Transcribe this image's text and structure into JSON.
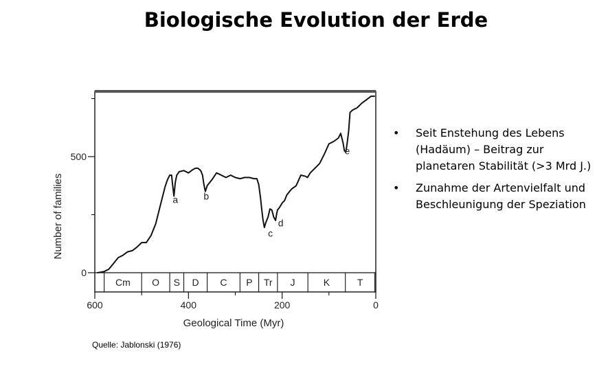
{
  "title": "Biologische Evolution der Erde",
  "bullets": [
    "Seit Enstehung des Lebens (Hadäum) – Beitrag zur planetaren Stabilität (>3 Mrd J.)",
    "Zunahme der Artenvielfalt und Beschleunigung der Speziation"
  ],
  "bullet_symbol": "•",
  "source": "Quelle: Jablonski (1976)",
  "chart_data": {
    "type": "line",
    "xlabel": "Geological Time (Myr)",
    "ylabel": "Number of families",
    "xlim": [
      600,
      0
    ],
    "ylim": [
      0,
      770
    ],
    "xticks": [
      600,
      400,
      200,
      0
    ],
    "yticks": [
      0,
      500
    ],
    "series": [
      {
        "x": [
          594,
          580,
          570,
          560,
          550,
          540,
          530,
          520,
          510,
          500,
          490,
          480,
          470,
          460,
          455,
          450,
          445,
          440,
          436,
          434,
          431,
          428,
          425,
          420,
          410,
          400,
          390,
          385,
          380,
          374,
          370,
          367,
          364,
          360,
          350,
          340,
          330,
          320,
          310,
          300,
          290,
          280,
          270,
          260,
          254,
          250,
          246,
          244,
          241,
          238,
          235,
          230,
          226,
          222,
          218,
          214,
          212,
          210,
          206,
          200,
          195,
          190,
          180,
          170,
          160,
          150,
          146,
          140,
          130,
          120,
          110,
          100,
          90,
          80,
          75,
          70,
          67,
          64,
          61,
          58,
          55,
          50,
          40,
          30,
          20,
          10,
          3
        ],
        "y": [
          0,
          5,
          15,
          40,
          65,
          75,
          90,
          95,
          110,
          130,
          130,
          160,
          210,
          290,
          330,
          370,
          400,
          420,
          420,
          380,
          330,
          390,
          420,
          435,
          440,
          430,
          445,
          450,
          450,
          440,
          420,
          380,
          350,
          375,
          400,
          430,
          420,
          410,
          420,
          410,
          405,
          410,
          410,
          405,
          405,
          380,
          320,
          280,
          230,
          195,
          215,
          240,
          275,
          270,
          240,
          225,
          250,
          270,
          280,
          300,
          310,
          335,
          360,
          375,
          420,
          415,
          410,
          430,
          450,
          470,
          510,
          555,
          565,
          580,
          600,
          560,
          525,
          520,
          560,
          610,
          690,
          700,
          710,
          730,
          745,
          760,
          760
        ]
      }
    ],
    "annotations": [
      {
        "label": "a",
        "x": 428,
        "y": 300
      },
      {
        "label": "b",
        "x": 362,
        "y": 315
      },
      {
        "label": "c",
        "x": 225,
        "y": 155
      },
      {
        "label": "d",
        "x": 203,
        "y": 200
      },
      {
        "label": "e",
        "x": 61,
        "y": 510
      }
    ],
    "periods": [
      {
        "label": "Cm",
        "from": 580,
        "to": 500
      },
      {
        "label": "O",
        "from": 500,
        "to": 440
      },
      {
        "label": "S",
        "from": 440,
        "to": 410
      },
      {
        "label": "D",
        "from": 410,
        "to": 360
      },
      {
        "label": "C",
        "from": 360,
        "to": 290
      },
      {
        "label": "P",
        "from": 290,
        "to": 250
      },
      {
        "label": "Tr",
        "from": 250,
        "to": 210
      },
      {
        "label": "J",
        "from": 210,
        "to": 145
      },
      {
        "label": "K",
        "from": 145,
        "to": 65
      },
      {
        "label": "T",
        "from": 65,
        "to": 2
      }
    ],
    "grid": false
  }
}
